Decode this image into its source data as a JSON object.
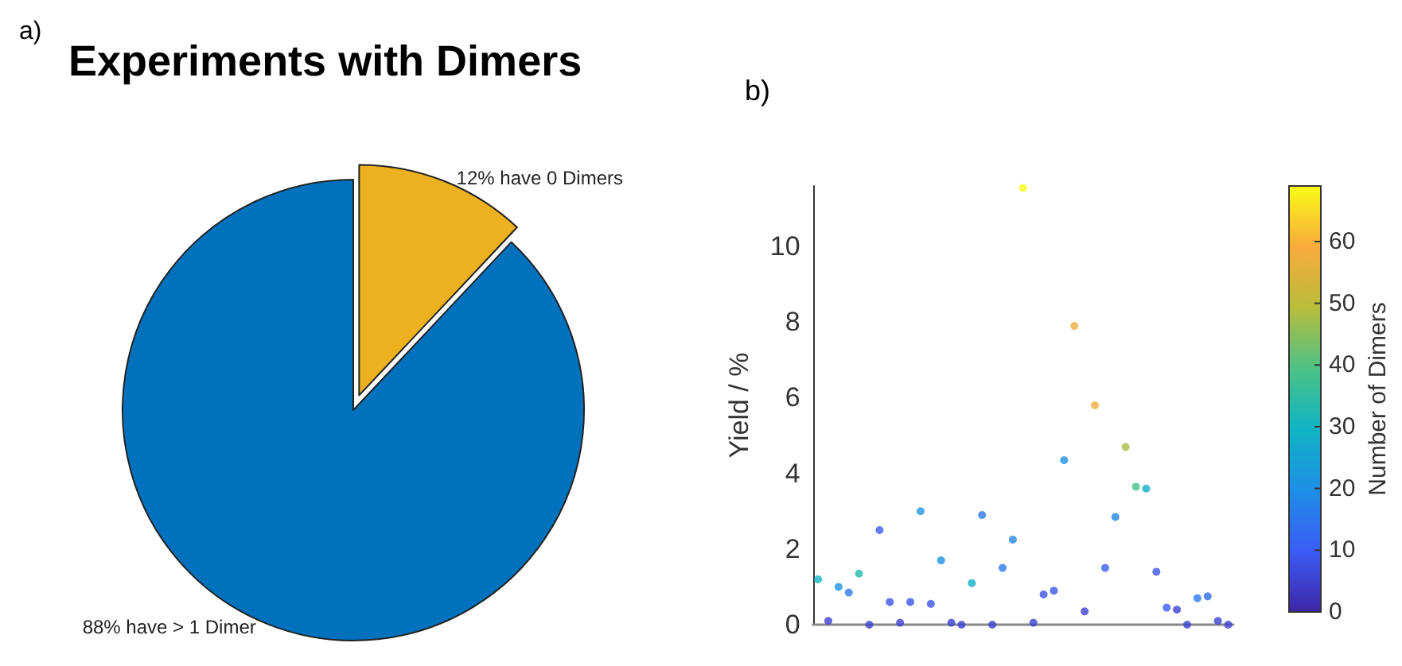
{
  "chart_data": [
    {
      "type": "pie",
      "title": "Experiments with Dimers",
      "annotations": [
        "a)"
      ],
      "categories": [
        "12% have 0 Dimers",
        "88% have > 1 Dimer"
      ],
      "values": [
        12,
        88
      ],
      "colors": [
        "#edb120",
        "#0072bd"
      ]
    },
    {
      "type": "scatter",
      "annotations": [
        "b)"
      ],
      "ylabel": "Yield / %",
      "clabel": "Number of Dimers",
      "categories": [
        null,
        null,
        null,
        null,
        null,
        null,
        null,
        null,
        null,
        null,
        null,
        null,
        null,
        null,
        null,
        null,
        null,
        null,
        null,
        null,
        null,
        null,
        null,
        null,
        null,
        null,
        null,
        null,
        null,
        null,
        null,
        null,
        null,
        null,
        null,
        null,
        null,
        null,
        null,
        null,
        null
      ],
      "values": [
        1.2,
        0.1,
        1.0,
        0.85,
        1.35,
        0,
        2.5,
        0.6,
        0.05,
        0.6,
        3.0,
        0.55,
        1.7,
        0.05,
        0,
        1.1,
        2.9,
        0,
        1.5,
        2.25,
        11.55,
        0.05,
        0.8,
        0.9,
        4.35,
        7.9,
        0.35,
        5.8,
        1.5,
        2.85,
        4.7,
        3.65,
        3.6,
        1.4,
        0.45,
        0.4,
        0,
        0.7,
        0.75,
        0.1,
        0
      ],
      "cvalues": [
        30,
        5,
        20,
        15,
        33,
        5,
        10,
        8,
        5,
        8,
        22,
        8,
        20,
        5,
        5,
        28,
        15,
        5,
        15,
        18,
        69,
        5,
        8,
        8,
        20,
        57,
        5,
        58,
        10,
        18,
        48,
        38,
        28,
        8,
        10,
        5,
        5,
        15,
        13,
        5,
        5
      ],
      "clim": [
        0,
        69
      ],
      "cticks": [
        0,
        10,
        20,
        30,
        40,
        50,
        60
      ],
      "ylim": [
        0,
        11.6
      ],
      "yticks": [
        0,
        2,
        4,
        6,
        8,
        10
      ],
      "tick_labels": "y",
      "grid": false,
      "marker": "circle"
    }
  ]
}
